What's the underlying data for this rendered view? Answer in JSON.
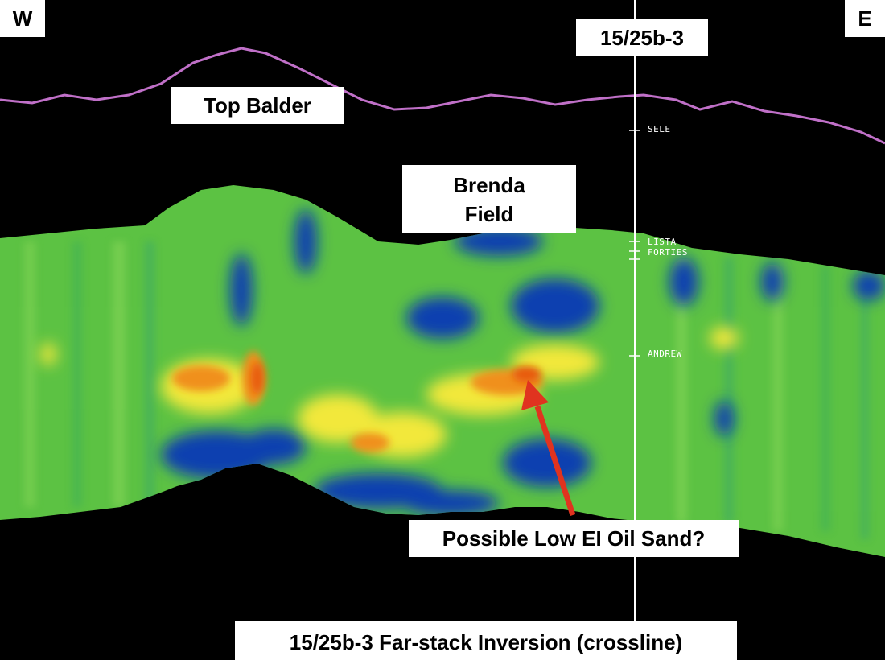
{
  "labels": {
    "west": "W",
    "east": "E",
    "well": "15/25b-3",
    "top_balder": "Top Balder",
    "brenda_line1": "Brenda",
    "brenda_line2": "Field",
    "annotation": "Possible Low EI Oil Sand?",
    "title": "15/25b-3 Far-stack Inversion (crossline)"
  },
  "well_tops": [
    "SELE",
    "LISTA",
    "FORTIES",
    "ANDREW"
  ],
  "colors": {
    "background": "#000000",
    "horizon": "#c070c8",
    "well_line": "#ffffff",
    "arrow": "#e0331f",
    "label_bg": "#ffffff",
    "inversion_low": "#0b3fb0",
    "inversion_mid": "#6ed04a",
    "inversion_high": "#e85a10"
  }
}
